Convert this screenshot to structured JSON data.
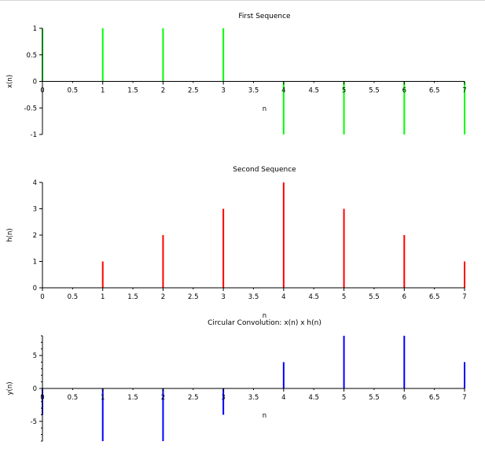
{
  "chart_data": [
    {
      "type": "stem",
      "title": "First Sequence",
      "xlabel": "n",
      "ylabel": "x(n)",
      "xlim": [
        0,
        7
      ],
      "ylim": [
        -1,
        1
      ],
      "xticks": [
        "0",
        "0.5",
        "1",
        "1.5",
        "2",
        "2.5",
        "3",
        "3.5",
        "4",
        "4.5",
        "5",
        "5.5",
        "6",
        "6.5",
        "7"
      ],
      "yticks": [
        "-1",
        "-0.5",
        "0",
        "0.5",
        "1"
      ],
      "color": "#00ff00",
      "x": [
        0,
        1,
        2,
        3,
        4,
        5,
        6,
        7
      ],
      "values": [
        1,
        1,
        1,
        1,
        -1,
        -1,
        -1,
        -1
      ]
    },
    {
      "type": "stem",
      "title": "Second Sequence",
      "xlabel": "n",
      "ylabel": "h(n)",
      "xlim": [
        0,
        7
      ],
      "ylim": [
        0,
        4
      ],
      "xticks": [
        "0",
        "0.5",
        "1",
        "1.5",
        "2",
        "2.5",
        "3",
        "3.5",
        "4",
        "4.5",
        "5",
        "5.5",
        "6",
        "6.5",
        "7"
      ],
      "yticks": [
        "0",
        "1",
        "2",
        "3",
        "4"
      ],
      "color": "#ff0000",
      "x": [
        0,
        1,
        2,
        3,
        4,
        5,
        6,
        7
      ],
      "values": [
        0,
        1,
        2,
        3,
        4,
        3,
        2,
        1
      ]
    },
    {
      "type": "stem",
      "title": "Circular Convolution: x(n) x h(n)",
      "xlabel": "n",
      "ylabel": "y(n)",
      "xlim": [
        0,
        7
      ],
      "ylim": [
        -8,
        8
      ],
      "xticks": [
        "0",
        "0.5",
        "1",
        "1.5",
        "2",
        "2.5",
        "3",
        "3.5",
        "4",
        "4.5",
        "5",
        "5.5",
        "6",
        "6.5",
        "7"
      ],
      "yticks": [
        "-5",
        "0",
        "5"
      ],
      "ytick_values": [
        -5,
        0,
        5
      ],
      "color": "#0000ff",
      "x": [
        0,
        1,
        2,
        3,
        4,
        5,
        6,
        7
      ],
      "values": [
        -4,
        -8,
        -8,
        -4,
        4,
        8,
        8,
        4
      ]
    }
  ]
}
